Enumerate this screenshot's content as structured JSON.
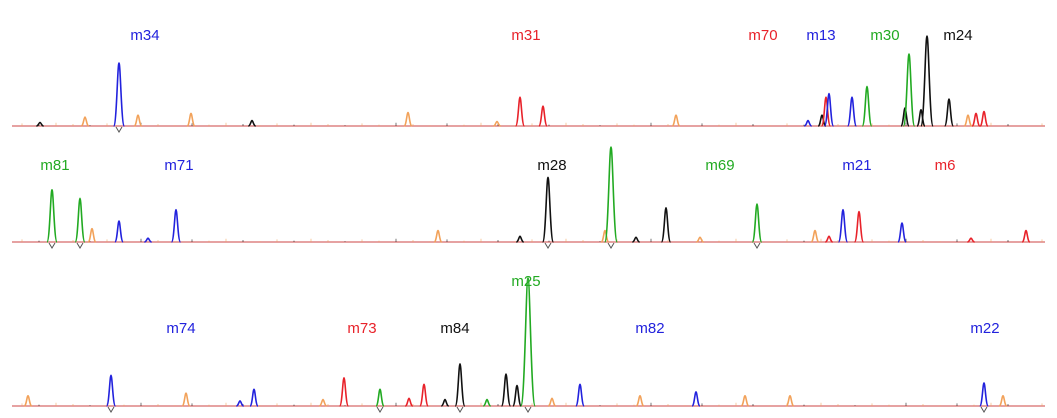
{
  "colors": {
    "blue": "#2222dd",
    "red": "#e8222a",
    "green": "#22aa22",
    "black": "#111111",
    "orange": "#f2a25a",
    "baseline": "#d86a6a"
  },
  "chart_data": {
    "type": "line",
    "title": "",
    "xlabel": "",
    "ylabel": "",
    "grid": false,
    "legend": "none",
    "panels": [
      {
        "xlim": [
          0,
          1057
        ],
        "ylim": [
          0,
          100
        ],
        "labels": [
          {
            "text": "m34",
            "color": "blue",
            "x": 145
          },
          {
            "text": "m31",
            "color": "red",
            "x": 526
          },
          {
            "text": "m70",
            "color": "red",
            "x": 763
          },
          {
            "text": "m13",
            "color": "blue",
            "x": 821
          },
          {
            "text": "m30",
            "color": "green",
            "x": 885
          },
          {
            "text": "m24",
            "color": "black",
            "x": 958
          }
        ],
        "peaks": [
          {
            "x": 119,
            "h": 70,
            "color": "blue",
            "mark": true
          },
          {
            "x": 85,
            "h": 10,
            "color": "orange"
          },
          {
            "x": 138,
            "h": 12,
            "color": "orange"
          },
          {
            "x": 191,
            "h": 14,
            "color": "orange"
          },
          {
            "x": 40,
            "h": 4,
            "color": "black"
          },
          {
            "x": 252,
            "h": 6,
            "color": "black"
          },
          {
            "x": 408,
            "h": 15,
            "color": "orange"
          },
          {
            "x": 497,
            "h": 5,
            "color": "orange"
          },
          {
            "x": 520,
            "h": 32,
            "color": "red"
          },
          {
            "x": 543,
            "h": 22,
            "color": "red"
          },
          {
            "x": 676,
            "h": 12,
            "color": "orange"
          },
          {
            "x": 808,
            "h": 6,
            "color": "blue"
          },
          {
            "x": 822,
            "h": 12,
            "color": "black"
          },
          {
            "x": 826,
            "h": 32,
            "color": "red"
          },
          {
            "x": 829,
            "h": 36,
            "color": "blue"
          },
          {
            "x": 852,
            "h": 32,
            "color": "blue"
          },
          {
            "x": 867,
            "h": 44,
            "color": "green"
          },
          {
            "x": 905,
            "h": 20,
            "color": "black"
          },
          {
            "x": 909,
            "h": 80,
            "color": "green"
          },
          {
            "x": 921,
            "h": 18,
            "color": "black"
          },
          {
            "x": 927,
            "h": 100,
            "color": "black"
          },
          {
            "x": 949,
            "h": 30,
            "color": "black"
          },
          {
            "x": 968,
            "h": 12,
            "color": "orange"
          },
          {
            "x": 976,
            "h": 14,
            "color": "red"
          },
          {
            "x": 984,
            "h": 16,
            "color": "red"
          }
        ]
      },
      {
        "xlim": [
          0,
          1057
        ],
        "ylim": [
          0,
          100
        ],
        "labels": [
          {
            "text": "m81",
            "color": "green",
            "x": 55
          },
          {
            "text": "m71",
            "color": "blue",
            "x": 179
          },
          {
            "text": "m28",
            "color": "black",
            "x": 552
          },
          {
            "text": "m69",
            "color": "green",
            "x": 720
          },
          {
            "text": "m21",
            "color": "blue",
            "x": 857
          },
          {
            "text": "m6",
            "color": "red",
            "x": 945
          }
        ],
        "peaks": [
          {
            "x": 52,
            "h": 55,
            "color": "green",
            "mark": true
          },
          {
            "x": 80,
            "h": 46,
            "color": "green",
            "mark": true
          },
          {
            "x": 92,
            "h": 14,
            "color": "orange"
          },
          {
            "x": 119,
            "h": 22,
            "color": "blue"
          },
          {
            "x": 148,
            "h": 4,
            "color": "blue"
          },
          {
            "x": 176,
            "h": 34,
            "color": "blue"
          },
          {
            "x": 438,
            "h": 12,
            "color": "orange"
          },
          {
            "x": 520,
            "h": 6,
            "color": "black"
          },
          {
            "x": 548,
            "h": 68,
            "color": "black",
            "mark": true
          },
          {
            "x": 605,
            "h": 12,
            "color": "orange"
          },
          {
            "x": 611,
            "h": 100,
            "color": "green",
            "mark": true
          },
          {
            "x": 636,
            "h": 5,
            "color": "black"
          },
          {
            "x": 666,
            "h": 36,
            "color": "black"
          },
          {
            "x": 700,
            "h": 5,
            "color": "orange"
          },
          {
            "x": 757,
            "h": 40,
            "color": "green",
            "mark": true
          },
          {
            "x": 815,
            "h": 12,
            "color": "orange"
          },
          {
            "x": 829,
            "h": 6,
            "color": "red"
          },
          {
            "x": 843,
            "h": 34,
            "color": "blue"
          },
          {
            "x": 859,
            "h": 32,
            "color": "red"
          },
          {
            "x": 902,
            "h": 20,
            "color": "blue"
          },
          {
            "x": 971,
            "h": 4,
            "color": "red"
          },
          {
            "x": 1026,
            "h": 12,
            "color": "red"
          }
        ]
      },
      {
        "xlim": [
          0,
          1057
        ],
        "ylim": [
          0,
          100
        ],
        "labels": [
          {
            "text": "m25",
            "color": "green",
            "x": 526,
            "row": "top"
          },
          {
            "text": "m74",
            "color": "blue",
            "x": 181
          },
          {
            "text": "m73",
            "color": "red",
            "x": 362
          },
          {
            "text": "m84",
            "color": "black",
            "x": 455
          },
          {
            "text": "m82",
            "color": "blue",
            "x": 650
          },
          {
            "text": "m22",
            "color": "blue",
            "x": 985
          }
        ],
        "peaks": [
          {
            "x": 28,
            "h": 8,
            "color": "orange"
          },
          {
            "x": 111,
            "h": 24,
            "color": "blue",
            "mark": true
          },
          {
            "x": 186,
            "h": 10,
            "color": "orange"
          },
          {
            "x": 240,
            "h": 4,
            "color": "blue"
          },
          {
            "x": 254,
            "h": 13,
            "color": "blue"
          },
          {
            "x": 323,
            "h": 5,
            "color": "orange"
          },
          {
            "x": 344,
            "h": 22,
            "color": "red"
          },
          {
            "x": 380,
            "h": 13,
            "color": "green",
            "mark": true
          },
          {
            "x": 409,
            "h": 6,
            "color": "red"
          },
          {
            "x": 424,
            "h": 17,
            "color": "red"
          },
          {
            "x": 445,
            "h": 5,
            "color": "black"
          },
          {
            "x": 460,
            "h": 33,
            "color": "black",
            "mark": true
          },
          {
            "x": 487,
            "h": 5,
            "color": "green"
          },
          {
            "x": 506,
            "h": 25,
            "color": "black"
          },
          {
            "x": 517,
            "h": 16,
            "color": "black"
          },
          {
            "x": 528,
            "h": 100,
            "color": "green",
            "mark": true
          },
          {
            "x": 552,
            "h": 6,
            "color": "orange"
          },
          {
            "x": 580,
            "h": 17,
            "color": "blue"
          },
          {
            "x": 640,
            "h": 8,
            "color": "orange"
          },
          {
            "x": 696,
            "h": 11,
            "color": "blue"
          },
          {
            "x": 745,
            "h": 8,
            "color": "orange"
          },
          {
            "x": 790,
            "h": 8,
            "color": "orange"
          },
          {
            "x": 984,
            "h": 18,
            "color": "blue",
            "mark": true
          },
          {
            "x": 1003,
            "h": 8,
            "color": "orange"
          }
        ]
      }
    ]
  }
}
